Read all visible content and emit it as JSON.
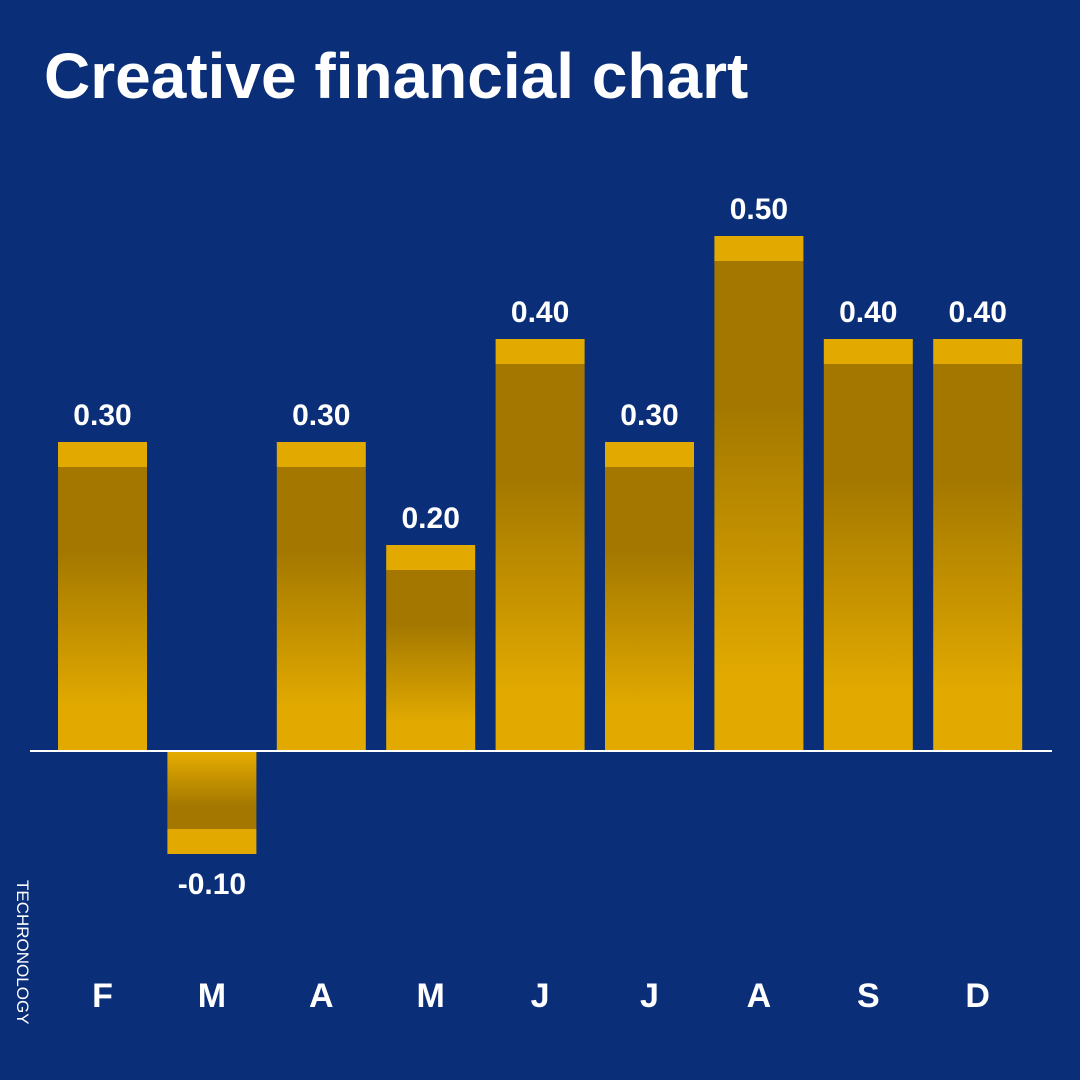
{
  "title": "Creative financial chart",
  "brand": "TECHRONOLOGY",
  "colors": {
    "background": "#0a2e78",
    "bar_cap": "#e2aa00",
    "bar_dark": "#a47800",
    "bar_light": "#e2aa00",
    "baseline": "#ffffff"
  },
  "chart_data": {
    "type": "bar",
    "title": "Creative financial chart",
    "categories": [
      "F",
      "M",
      "A",
      "M",
      "J",
      "J",
      "A",
      "S",
      "D"
    ],
    "values": [
      0.3,
      -0.1,
      0.3,
      0.2,
      0.4,
      0.3,
      0.5,
      0.4,
      0.4
    ],
    "data_labels": [
      "0.30",
      "-0.10",
      "0.30",
      "0.20",
      "0.40",
      "0.30",
      "0.50",
      "0.40",
      "0.40"
    ],
    "xlabel": "",
    "ylabel": "",
    "ylim": [
      -0.1,
      0.5
    ],
    "grid": false,
    "legend": "none"
  }
}
